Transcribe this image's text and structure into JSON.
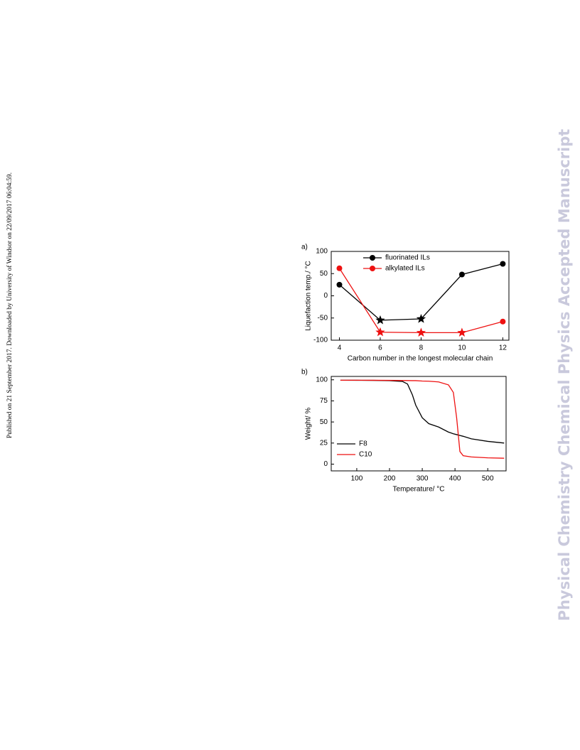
{
  "side_note": "Published on 21 September 2017. Downloaded by University of Windsor on 22/09/2017 06:04:59.",
  "watermark": "Physical Chemistry Chemical Physics Accepted Manuscript",
  "chart_data": [
    {
      "type": "line",
      "panel_label": "a)",
      "xlabel": "Carbon number in the longest molecular chain",
      "ylabel": "Liquefaction temp./ °C",
      "x": [
        4,
        6,
        8,
        10,
        12
      ],
      "series": [
        {
          "name": "fluorinated ILs",
          "color": "#000000",
          "values": [
            25,
            -55,
            -52,
            48,
            72
          ],
          "markers": [
            "circle",
            "star",
            "star",
            "circle",
            "circle"
          ]
        },
        {
          "name": "alkylated ILs",
          "color": "#ee1111",
          "values": [
            62,
            -82,
            -83,
            -83,
            -58
          ],
          "markers": [
            "circle",
            "star",
            "star",
            "star",
            "circle"
          ]
        }
      ],
      "xlim": [
        3.6,
        12.3
      ],
      "xticks": [
        4,
        6,
        8,
        10,
        12
      ],
      "ylim": [
        -100,
        100
      ],
      "yticks": [
        -100,
        -50,
        0,
        50,
        100
      ],
      "legend": "upper center"
    },
    {
      "type": "line",
      "panel_label": "b)",
      "xlabel": "Temperature/ °C",
      "ylabel": "Weight/ %",
      "x": [
        50,
        100,
        150,
        200,
        240,
        255,
        270,
        280,
        300,
        320,
        350,
        380,
        395,
        405,
        415,
        425,
        450,
        500,
        550
      ],
      "series": [
        {
          "name": "F8",
          "color": "#000000",
          "values": [
            99.5,
            99.4,
            99.3,
            99,
            98,
            95,
            82,
            70,
            55,
            48,
            44,
            38,
            36,
            35,
            34,
            33,
            30,
            27,
            25
          ]
        },
        {
          "name": "C10",
          "color": "#ee1111",
          "values": [
            99.5,
            99.5,
            99.4,
            99.3,
            99.2,
            99.1,
            99,
            99,
            98.5,
            98.3,
            97.5,
            94,
            85,
            55,
            15,
            10,
            8.5,
            7.5,
            7
          ]
        }
      ],
      "xlim": [
        22,
        556
      ],
      "xticks": [
        100,
        200,
        300,
        400,
        500
      ],
      "ylim": [
        -8,
        104
      ],
      "yticks": [
        0,
        25,
        50,
        75,
        100
      ],
      "legend": "lower left"
    }
  ]
}
